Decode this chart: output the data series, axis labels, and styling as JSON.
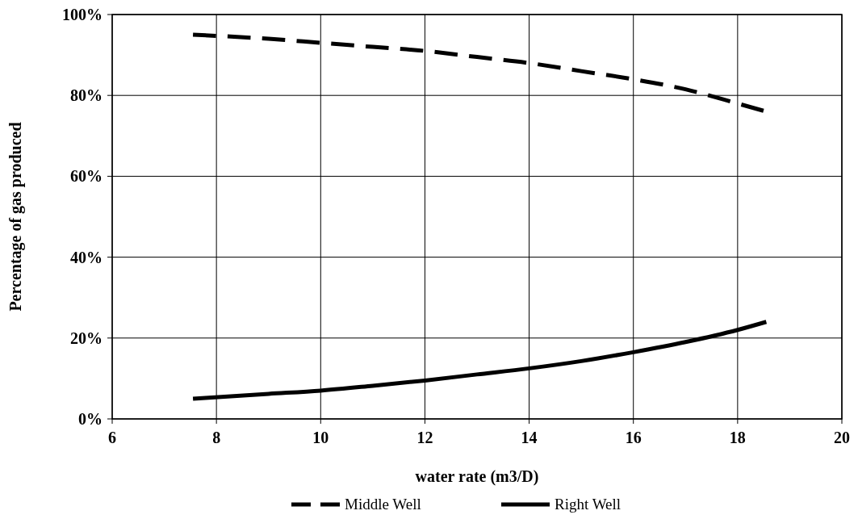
{
  "chart_data": {
    "type": "line",
    "xlabel": "water rate (m3/D)",
    "ylabel": "Percentage of gas produced",
    "xlim": [
      6,
      20
    ],
    "xticks": [
      6,
      8,
      10,
      12,
      14,
      16,
      18,
      20
    ],
    "ylim": [
      0,
      100
    ],
    "yticks": [
      {
        "value": 0,
        "label": "0%"
      },
      {
        "value": 20,
        "label": "20%"
      },
      {
        "value": 40,
        "label": "40%"
      },
      {
        "value": 60,
        "label": "60%"
      },
      {
        "value": 80,
        "label": "80%"
      },
      {
        "value": 100,
        "label": "100%"
      }
    ],
    "grid": true,
    "legend": "bottom",
    "series": [
      {
        "name": "Middle Well",
        "color": "#000000",
        "line_style": "dashed",
        "x": [
          7.55,
          9,
          10,
          11,
          12,
          13,
          14,
          15,
          16,
          17,
          18,
          18.55
        ],
        "values": [
          95,
          94,
          93,
          92,
          91,
          89.5,
          88,
          86,
          84,
          81.5,
          78,
          76
        ]
      },
      {
        "name": "Right Well",
        "color": "#000000",
        "line_style": "solid",
        "x": [
          7.55,
          9,
          10,
          11,
          12,
          13,
          14,
          15,
          16,
          17,
          18,
          18.55
        ],
        "values": [
          5,
          6.2,
          7,
          8.2,
          9.5,
          11,
          12.5,
          14.3,
          16.5,
          19,
          22,
          24
        ]
      }
    ]
  }
}
